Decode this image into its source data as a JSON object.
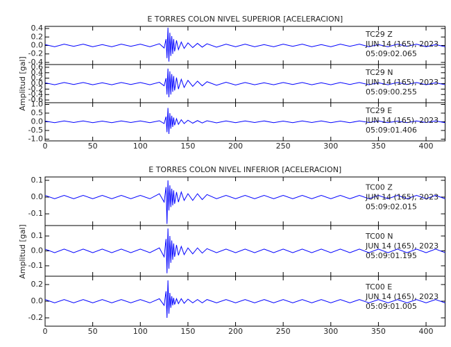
{
  "chart_data": [
    {
      "type": "line",
      "title": "E TORRES COLON NIVEL SUPERIOR [ACELERACION]",
      "y_label": "Amplitud [gal]",
      "color": "#0000ff",
      "xlim": [
        0,
        420
      ],
      "xticks": [
        0,
        50,
        100,
        150,
        200,
        250,
        300,
        350,
        400
      ],
      "x": [
        0,
        10,
        20,
        30,
        40,
        50,
        60,
        70,
        80,
        90,
        100,
        110,
        120,
        125,
        127,
        128,
        129,
        130,
        131,
        132,
        133,
        134,
        135,
        136,
        138,
        140,
        143,
        146,
        150,
        155,
        160,
        165,
        170,
        180,
        190,
        200,
        210,
        220,
        230,
        240,
        250,
        260,
        270,
        280,
        290,
        300,
        310,
        320,
        330,
        340,
        350,
        360,
        370,
        380,
        390,
        400,
        410,
        420
      ],
      "traces": [
        {
          "station": "TC29   Z",
          "date": "JUN 14 (165), 2023",
          "time": "05:09:02.065",
          "ylim": [
            -0.45,
            0.45
          ],
          "yticks": [
            0.4,
            0.2,
            {
              "value": 0,
              "label": "0.0"
            },
            -0.2,
            -0.4
          ],
          "values": [
            0.02,
            -0.03,
            0.03,
            -0.02,
            0.03,
            -0.03,
            0.02,
            -0.03,
            0.03,
            -0.02,
            0.03,
            -0.03,
            0.04,
            -0.06,
            0.15,
            -0.3,
            0.42,
            -0.38,
            0.3,
            -0.25,
            0.22,
            -0.2,
            0.15,
            -0.14,
            0.12,
            -0.1,
            0.08,
            -0.07,
            0.06,
            -0.05,
            0.05,
            -0.04,
            0.04,
            -0.04,
            0.03,
            -0.03,
            0.03,
            -0.03,
            0.02,
            -0.03,
            0.03,
            -0.02,
            0.03,
            -0.03,
            0.02,
            -0.03,
            0.03,
            -0.02,
            0.03,
            -0.03,
            0.02,
            -0.03,
            0.03,
            -0.02,
            0.03,
            -0.03,
            0.02,
            -0.03
          ]
        },
        {
          "station": "TC29   N",
          "date": "JUN 14 (165), 2023",
          "time": "05:09:00.255",
          "ylim": [
            -0.7,
            0.7
          ],
          "yticks": [
            0.6,
            0.4,
            0.2,
            {
              "value": 0,
              "label": "0.0"
            },
            -0.2,
            -0.4,
            -0.6
          ],
          "values": [
            0.03,
            -0.04,
            0.04,
            -0.03,
            0.04,
            -0.04,
            0.03,
            -0.04,
            0.04,
            -0.03,
            0.04,
            -0.04,
            0.05,
            -0.08,
            0.2,
            -0.4,
            0.55,
            -0.5,
            0.45,
            -0.4,
            0.35,
            -0.3,
            0.28,
            -0.25,
            0.22,
            -0.2,
            0.16,
            -0.14,
            0.12,
            -0.1,
            0.09,
            -0.08,
            0.07,
            -0.06,
            0.05,
            -0.05,
            0.04,
            -0.04,
            0.03,
            -0.04,
            0.04,
            -0.03,
            0.04,
            -0.04,
            0.03,
            -0.04,
            0.04,
            -0.03,
            0.04,
            -0.04,
            0.03,
            -0.04,
            0.04,
            -0.03,
            0.04,
            -0.04,
            0.03,
            -0.04
          ]
        },
        {
          "station": "TC29   E",
          "date": "JUN 14 (165), 2023",
          "time": "05:09:01.406",
          "ylim": [
            -1.1,
            1.1
          ],
          "yticks": [
            {
              "value": 1,
              "label": "1.0"
            },
            0.5,
            {
              "value": 0,
              "label": "0.0"
            },
            -0.5,
            {
              "value": -1,
              "label": "-1.0"
            }
          ],
          "values": [
            0.04,
            -0.05,
            0.05,
            -0.04,
            0.05,
            -0.05,
            0.04,
            -0.05,
            0.05,
            -0.04,
            0.05,
            -0.05,
            0.06,
            -0.1,
            0.3,
            -0.6,
            0.8,
            -0.7,
            0.5,
            -0.4,
            0.35,
            -0.3,
            0.25,
            -0.2,
            0.18,
            -0.15,
            0.12,
            -0.1,
            0.09,
            -0.08,
            0.07,
            -0.07,
            0.06,
            -0.06,
            0.05,
            -0.05,
            0.05,
            -0.04,
            0.05,
            -0.05,
            0.04,
            -0.05,
            0.05,
            -0.04,
            0.05,
            -0.05,
            0.04,
            -0.05,
            0.05,
            -0.04,
            0.05,
            -0.05,
            0.04,
            -0.05,
            0.05,
            -0.04,
            0.05,
            -0.05
          ]
        }
      ]
    },
    {
      "type": "line",
      "title": "E TORRES COLON NIVEL INFERIOR [ACELERACION]",
      "y_label": "Amplitud [gal]",
      "color": "#0000ff",
      "xlim": [
        0,
        420
      ],
      "xticks": [
        0,
        50,
        100,
        150,
        200,
        250,
        300,
        350,
        400
      ],
      "x": [
        0,
        10,
        20,
        30,
        40,
        50,
        60,
        70,
        80,
        90,
        100,
        110,
        120,
        125,
        127,
        128,
        129,
        130,
        131,
        132,
        133,
        134,
        135,
        136,
        138,
        140,
        143,
        146,
        150,
        155,
        160,
        165,
        170,
        180,
        190,
        200,
        210,
        220,
        230,
        240,
        250,
        260,
        270,
        280,
        290,
        300,
        310,
        320,
        330,
        340,
        350,
        360,
        370,
        380,
        390,
        400,
        410,
        420
      ],
      "traces": [
        {
          "station": "TC00   Z",
          "date": "JUN 14 (165), 2023",
          "time": "05:09:02.015",
          "ylim": [
            -0.17,
            0.12
          ],
          "yticks": [
            0.1,
            {
              "value": 0,
              "label": "0.0"
            },
            -0.1
          ],
          "values": [
            0.01,
            -0.01,
            0.01,
            -0.01,
            0.01,
            -0.01,
            0.01,
            -0.01,
            0.01,
            -0.01,
            0.01,
            -0.01,
            0.02,
            -0.03,
            0.06,
            -0.16,
            0.1,
            -0.08,
            0.07,
            -0.06,
            0.05,
            -0.05,
            0.04,
            -0.04,
            0.03,
            -0.03,
            0.03,
            -0.02,
            0.02,
            -0.02,
            0.02,
            -0.015,
            0.015,
            -0.01,
            0.01,
            -0.01,
            0.01,
            -0.01,
            0.01,
            -0.01,
            0.01,
            -0.01,
            0.01,
            -0.01,
            0.01,
            -0.01,
            0.01,
            -0.01,
            0.01,
            -0.01,
            0.01,
            -0.01,
            0.01,
            -0.01,
            0.01,
            -0.01,
            0.01,
            -0.01
          ]
        },
        {
          "station": "TC00   N",
          "date": "JUN 14 (165), 2023",
          "time": "05:09:01.195",
          "ylim": [
            -0.17,
            0.17
          ],
          "yticks": [
            0.1,
            {
              "value": 0,
              "label": "0.0"
            },
            -0.1
          ],
          "values": [
            0.012,
            -0.012,
            0.012,
            -0.012,
            0.012,
            -0.012,
            0.012,
            -0.012,
            0.012,
            -0.012,
            0.012,
            -0.012,
            0.02,
            -0.04,
            0.08,
            -0.15,
            0.15,
            -0.12,
            0.1,
            -0.08,
            0.07,
            -0.06,
            0.05,
            -0.04,
            0.04,
            -0.03,
            0.03,
            -0.025,
            0.02,
            -0.02,
            0.02,
            -0.015,
            0.015,
            -0.012,
            0.012,
            -0.012,
            0.012,
            -0.012,
            0.012,
            -0.012,
            0.012,
            -0.012,
            0.012,
            -0.012,
            0.012,
            -0.012,
            0.012,
            -0.012,
            0.012,
            -0.012,
            0.012,
            -0.012,
            0.012,
            -0.012,
            0.012,
            -0.012,
            0.012,
            -0.012
          ]
        },
        {
          "station": "TC00   E",
          "date": "JUN 14 (165), 2023",
          "time": "05:09:01.005",
          "ylim": [
            -0.3,
            0.3
          ],
          "yticks": [
            0.2,
            {
              "value": 0,
              "label": "0.0"
            },
            -0.2
          ],
          "values": [
            0.02,
            -0.02,
            0.02,
            -0.02,
            0.02,
            -0.02,
            0.02,
            -0.02,
            0.02,
            -0.02,
            0.02,
            -0.02,
            0.03,
            -0.05,
            0.12,
            -0.2,
            0.25,
            -0.15,
            0.1,
            -0.08,
            0.06,
            -0.05,
            0.04,
            -0.04,
            0.03,
            -0.03,
            0.03,
            -0.025,
            0.025,
            -0.02,
            0.02,
            -0.02,
            0.02,
            -0.02,
            0.02,
            -0.02,
            0.02,
            -0.02,
            0.02,
            -0.02,
            0.02,
            -0.02,
            0.02,
            -0.02,
            0.02,
            -0.02,
            0.02,
            -0.02,
            0.02,
            -0.02,
            0.02,
            -0.02,
            0.02,
            -0.02,
            0.02,
            -0.02,
            0.02,
            -0.02
          ]
        }
      ]
    }
  ]
}
